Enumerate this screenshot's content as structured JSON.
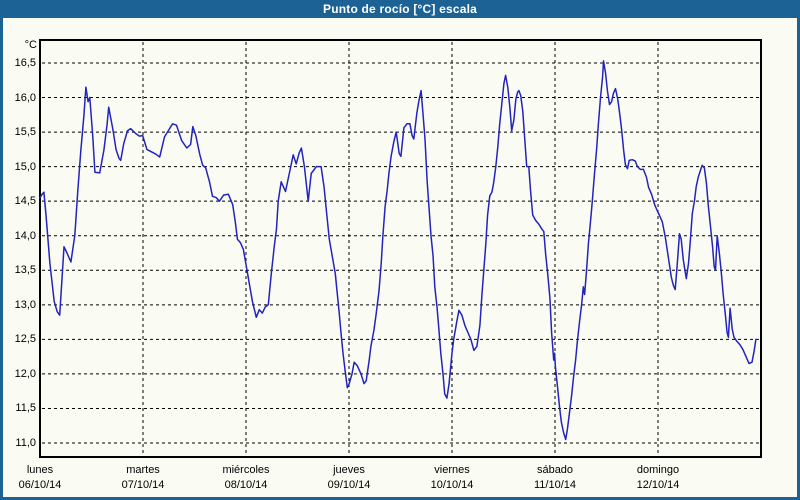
{
  "window": {
    "title": "Punto de rocío [°C] escala"
  },
  "theme": {
    "titlebar_bg": "#1d6295",
    "window_border": "#1d6295",
    "plot_bg": "#fafcf4",
    "line_color": "#2323bd",
    "grid_color": "#000000",
    "text_color": "#000000"
  },
  "chart_data": {
    "type": "line",
    "title": "Punto de rocío [°C] escala",
    "ylabel": "°C",
    "xlabel": "",
    "grid": true,
    "legend": "none",
    "ylim": [
      11.0,
      16.5
    ],
    "y_step": 0.5,
    "y_ticks": [
      {
        "label": "16,5",
        "value": 16.5
      },
      {
        "label": "16,0",
        "value": 16.0
      },
      {
        "label": "15,5",
        "value": 15.5
      },
      {
        "label": "15,0",
        "value": 15.0
      },
      {
        "label": "14,5",
        "value": 14.5
      },
      {
        "label": "14,0",
        "value": 14.0
      },
      {
        "label": "13,5",
        "value": 13.5
      },
      {
        "label": "13,0",
        "value": 13.0
      },
      {
        "label": "12,5",
        "value": 12.5
      },
      {
        "label": "12,0",
        "value": 12.0
      },
      {
        "label": "11,5",
        "value": 11.5
      },
      {
        "label": "11,0",
        "value": 11.0
      }
    ],
    "x_range_hours": [
      0,
      168
    ],
    "x_axis_days": [
      {
        "name": "lunes",
        "date": "06/10/14"
      },
      {
        "name": "martes",
        "date": "07/10/14"
      },
      {
        "name": "miércoles",
        "date": "08/10/14"
      },
      {
        "name": "jueves",
        "date": "09/10/14"
      },
      {
        "name": "viernes",
        "date": "10/10/14"
      },
      {
        "name": "sábado",
        "date": "11/10/14"
      },
      {
        "name": "domingo",
        "date": "12/10/14"
      }
    ],
    "series": [
      {
        "name": "Punto de rocío",
        "unit": "°C",
        "points": [
          [
            0,
            14.55
          ],
          [
            0.5,
            14.6
          ],
          [
            0.9,
            14.63
          ],
          [
            1.4,
            14.3
          ],
          [
            2.3,
            13.6
          ],
          [
            3.3,
            13.05
          ],
          [
            4,
            12.9
          ],
          [
            4.6,
            12.85
          ],
          [
            5.6,
            13.84
          ],
          [
            6.3,
            13.75
          ],
          [
            7.2,
            13.62
          ],
          [
            8.1,
            14
          ],
          [
            8.8,
            14.65
          ],
          [
            9.5,
            15.23
          ],
          [
            10.2,
            15.72
          ],
          [
            10.7,
            16.15
          ],
          [
            11.2,
            15.94
          ],
          [
            11.6,
            16
          ],
          [
            12.3,
            15.43
          ],
          [
            12.8,
            14.92
          ],
          [
            13.9,
            14.91
          ],
          [
            14.9,
            15.24
          ],
          [
            15.6,
            15.6
          ],
          [
            16,
            15.86
          ],
          [
            17,
            15.53
          ],
          [
            17.7,
            15.25
          ],
          [
            18.4,
            15.12
          ],
          [
            18.8,
            15.09
          ],
          [
            19.5,
            15.33
          ],
          [
            20.4,
            15.52
          ],
          [
            21.1,
            15.55
          ],
          [
            22.3,
            15.48
          ],
          [
            23.2,
            15.44
          ],
          [
            23.9,
            15.45
          ],
          [
            24.9,
            15.25
          ],
          [
            25.8,
            15.22
          ],
          [
            27,
            15.18
          ],
          [
            27.9,
            15.14
          ],
          [
            29,
            15.43
          ],
          [
            30.2,
            15.55
          ],
          [
            30.9,
            15.62
          ],
          [
            31.8,
            15.6
          ],
          [
            33,
            15.38
          ],
          [
            34.2,
            15.27
          ],
          [
            35.1,
            15.32
          ],
          [
            35.6,
            15.58
          ],
          [
            36.3,
            15.45
          ],
          [
            37.2,
            15.18
          ],
          [
            37.9,
            15.02
          ],
          [
            38.6,
            14.98
          ],
          [
            39.5,
            14.78
          ],
          [
            40.2,
            14.57
          ],
          [
            41.1,
            14.55
          ],
          [
            41.8,
            14.5
          ],
          [
            42.8,
            14.59
          ],
          [
            43.9,
            14.6
          ],
          [
            44.9,
            14.45
          ],
          [
            45.5,
            14.2
          ],
          [
            46,
            13.95
          ],
          [
            46.7,
            13.9
          ],
          [
            47.4,
            13.8
          ],
          [
            48.1,
            13.55
          ],
          [
            48.8,
            13.3
          ],
          [
            49.5,
            13.05
          ],
          [
            50.4,
            12.82
          ],
          [
            51.1,
            12.93
          ],
          [
            51.8,
            12.88
          ],
          [
            52.5,
            12.97
          ],
          [
            53.2,
            13
          ],
          [
            53.9,
            13.45
          ],
          [
            54.6,
            13.85
          ],
          [
            55.1,
            14.1
          ],
          [
            55.5,
            14.5
          ],
          [
            56.2,
            14.78
          ],
          [
            57.2,
            14.64
          ],
          [
            58.1,
            14.9
          ],
          [
            59,
            15.17
          ],
          [
            59.7,
            15.04
          ],
          [
            60.4,
            15.2
          ],
          [
            60.9,
            15.27
          ],
          [
            61.6,
            15
          ],
          [
            62.5,
            14.5
          ],
          [
            63.2,
            14.9
          ],
          [
            64.4,
            15
          ],
          [
            65.5,
            15
          ],
          [
            66.2,
            14.7
          ],
          [
            66.9,
            14.26
          ],
          [
            67.4,
            13.95
          ],
          [
            68.1,
            13.7
          ],
          [
            68.8,
            13.45
          ],
          [
            69.2,
            13.2
          ],
          [
            69.7,
            12.9
          ],
          [
            70.2,
            12.55
          ],
          [
            70.6,
            12.3
          ],
          [
            71.1,
            12.05
          ],
          [
            71.6,
            11.8
          ],
          [
            72,
            11.85
          ],
          [
            72.7,
            12
          ],
          [
            73.2,
            12.17
          ],
          [
            73.9,
            12.12
          ],
          [
            74.8,
            12
          ],
          [
            75.5,
            11.86
          ],
          [
            76,
            11.9
          ],
          [
            76.7,
            12.2
          ],
          [
            77.1,
            12.4
          ],
          [
            77.8,
            12.63
          ],
          [
            78.3,
            12.85
          ],
          [
            79,
            13.2
          ],
          [
            79.5,
            13.6
          ],
          [
            79.9,
            14
          ],
          [
            80.4,
            14.42
          ],
          [
            80.9,
            14.66
          ],
          [
            81.3,
            14.9
          ],
          [
            81.8,
            15.15
          ],
          [
            82.5,
            15.38
          ],
          [
            83,
            15.5
          ],
          [
            83.7,
            15.19
          ],
          [
            84.1,
            15.15
          ],
          [
            84.8,
            15.56
          ],
          [
            85.5,
            15.62
          ],
          [
            86.2,
            15.62
          ],
          [
            86.7,
            15.45
          ],
          [
            87.1,
            15.4
          ],
          [
            87.8,
            15.77
          ],
          [
            88.3,
            15.96
          ],
          [
            88.8,
            16.1
          ],
          [
            89.2,
            15.8
          ],
          [
            89.7,
            15.4
          ],
          [
            90.2,
            14.8
          ],
          [
            90.6,
            14.45
          ],
          [
            91.1,
            14
          ],
          [
            91.6,
            13.7
          ],
          [
            92,
            13.26
          ],
          [
            92.5,
            12.97
          ],
          [
            92.9,
            12.68
          ],
          [
            93.4,
            12.3
          ],
          [
            93.9,
            12
          ],
          [
            94.3,
            11.71
          ],
          [
            94.8,
            11.65
          ],
          [
            95.3,
            11.85
          ],
          [
            96,
            12.3
          ],
          [
            96.4,
            12.5
          ],
          [
            97.1,
            12.75
          ],
          [
            97.6,
            12.92
          ],
          [
            98.3,
            12.85
          ],
          [
            99,
            12.7
          ],
          [
            99.7,
            12.6
          ],
          [
            100.4,
            12.5
          ],
          [
            101.1,
            12.34
          ],
          [
            101.8,
            12.4
          ],
          [
            102.5,
            12.7
          ],
          [
            103,
            13.16
          ],
          [
            103.4,
            13.5
          ],
          [
            103.9,
            13.9
          ],
          [
            104.3,
            14.3
          ],
          [
            104.8,
            14.58
          ],
          [
            105.3,
            14.63
          ],
          [
            105.7,
            14.76
          ],
          [
            106.2,
            15
          ],
          [
            106.7,
            15.3
          ],
          [
            107.1,
            15.6
          ],
          [
            107.6,
            15.91
          ],
          [
            108.1,
            16.2
          ],
          [
            108.5,
            16.32
          ],
          [
            109,
            16.15
          ],
          [
            109.5,
            15.85
          ],
          [
            109.9,
            15.52
          ],
          [
            110.4,
            15.67
          ],
          [
            110.9,
            15.98
          ],
          [
            111.3,
            16.08
          ],
          [
            111.6,
            16.1
          ],
          [
            112,
            16.03
          ],
          [
            112.5,
            15.8
          ],
          [
            112.9,
            15.45
          ],
          [
            113.4,
            15
          ],
          [
            113.9,
            15
          ],
          [
            114.3,
            14.66
          ],
          [
            114.8,
            14.3
          ],
          [
            115.5,
            14.22
          ],
          [
            116.2,
            14.17
          ],
          [
            116.9,
            14.1
          ],
          [
            117.4,
            14.06
          ],
          [
            117.8,
            13.74
          ],
          [
            118.3,
            13.45
          ],
          [
            118.8,
            13.1
          ],
          [
            119.2,
            12.6
          ],
          [
            119.7,
            12.2
          ],
          [
            119.9,
            12.3
          ],
          [
            120.1,
            12.1
          ],
          [
            120.6,
            11.8
          ],
          [
            121.1,
            11.5
          ],
          [
            121.5,
            11.3
          ],
          [
            122,
            11.15
          ],
          [
            122.5,
            11.05
          ],
          [
            122.9,
            11.2
          ],
          [
            123.4,
            11.45
          ],
          [
            123.9,
            11.7
          ],
          [
            124.3,
            11.95
          ],
          [
            124.8,
            12.2
          ],
          [
            125.2,
            12.46
          ],
          [
            125.7,
            12.75
          ],
          [
            126.2,
            13
          ],
          [
            126.6,
            13.26
          ],
          [
            126.9,
            13.15
          ],
          [
            127.3,
            13.45
          ],
          [
            127.8,
            13.9
          ],
          [
            128.3,
            14.22
          ],
          [
            128.7,
            14.5
          ],
          [
            129.2,
            14.9
          ],
          [
            129.7,
            15.25
          ],
          [
            130.1,
            15.6
          ],
          [
            130.6,
            16
          ],
          [
            131.1,
            16.3
          ],
          [
            131.3,
            16.53
          ],
          [
            131.8,
            16.35
          ],
          [
            132.2,
            16.1
          ],
          [
            132.7,
            15.9
          ],
          [
            133.2,
            15.94
          ],
          [
            133.6,
            16.06
          ],
          [
            134.1,
            16.13
          ],
          [
            134.6,
            15.98
          ],
          [
            135,
            15.8
          ],
          [
            135.5,
            15.55
          ],
          [
            136,
            15.23
          ],
          [
            136.4,
            15.03
          ],
          [
            136.9,
            14.97
          ],
          [
            137.3,
            15.09
          ],
          [
            138,
            15.1
          ],
          [
            138.7,
            15.08
          ],
          [
            139.2,
            15
          ],
          [
            139.9,
            14.96
          ],
          [
            140.6,
            14.96
          ],
          [
            141.3,
            14.85
          ],
          [
            141.8,
            14.7
          ],
          [
            142.5,
            14.6
          ],
          [
            143.2,
            14.45
          ],
          [
            143.9,
            14.35
          ],
          [
            144.3,
            14.3
          ],
          [
            145,
            14.2
          ],
          [
            145.7,
            13.98
          ],
          [
            146.4,
            13.69
          ],
          [
            147.1,
            13.4
          ],
          [
            147.6,
            13.28
          ],
          [
            148,
            13.22
          ],
          [
            148.5,
            13.6
          ],
          [
            149,
            14.03
          ],
          [
            149.4,
            13.95
          ],
          [
            149.9,
            13.65
          ],
          [
            150.6,
            13.38
          ],
          [
            151.1,
            13.6
          ],
          [
            151.5,
            13.9
          ],
          [
            152,
            14.32
          ],
          [
            152.5,
            14.51
          ],
          [
            152.9,
            14.71
          ],
          [
            153.4,
            14.85
          ],
          [
            153.9,
            14.95
          ],
          [
            154.3,
            15.02
          ],
          [
            154.8,
            14.98
          ],
          [
            155.3,
            14.75
          ],
          [
            155.7,
            14.45
          ],
          [
            156.2,
            14.15
          ],
          [
            156.7,
            13.85
          ],
          [
            157.1,
            13.55
          ],
          [
            157.4,
            13.5
          ],
          [
            157.8,
            14
          ],
          [
            158.3,
            13.74
          ],
          [
            158.7,
            13.5
          ],
          [
            159.2,
            13.15
          ],
          [
            159.7,
            12.85
          ],
          [
            160.1,
            12.6
          ],
          [
            160.4,
            12.53
          ],
          [
            160.8,
            12.95
          ],
          [
            161.3,
            12.65
          ],
          [
            161.7,
            12.53
          ],
          [
            162.4,
            12.47
          ],
          [
            163.1,
            12.42
          ],
          [
            163.8,
            12.35
          ],
          [
            164.5,
            12.25
          ],
          [
            165.2,
            12.15
          ],
          [
            165.9,
            12.17
          ],
          [
            166.4,
            12.33
          ],
          [
            166.8,
            12.5
          ]
        ]
      }
    ]
  }
}
